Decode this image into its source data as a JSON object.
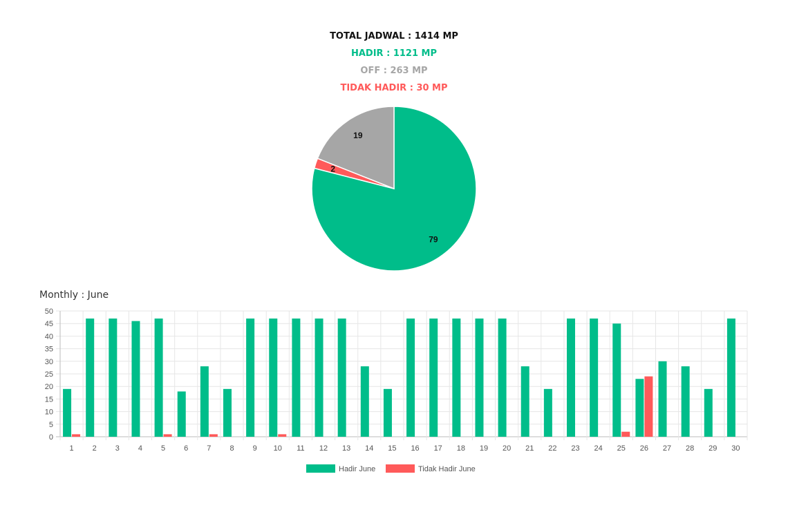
{
  "summary": {
    "total": "TOTAL JADWAL : 1414 MP",
    "hadir": "HADIR : 1121 MP",
    "off": "OFF : 263 MP",
    "tidak_hadir": "TIDAK HADIR : 30 MP"
  },
  "colors": {
    "hadir": "#00bd8a",
    "off": "#a6a6a6",
    "tidak_hadir": "#ff5a5a"
  },
  "monthly_title": "Monthly : June",
  "chart_data": [
    {
      "type": "pie",
      "slices": [
        {
          "key": "hadir",
          "value": 79,
          "label": "79",
          "color": "#00bd8a"
        },
        {
          "key": "tidak_hadir",
          "value": 2,
          "label": "2",
          "color": "#ff5a5a"
        },
        {
          "key": "off",
          "value": 19,
          "label": "19",
          "color": "#a6a6a6"
        }
      ]
    },
    {
      "type": "bar",
      "title": "Monthly : June",
      "categories": [
        "1",
        "2",
        "3",
        "4",
        "5",
        "6",
        "7",
        "8",
        "9",
        "10",
        "11",
        "12",
        "13",
        "14",
        "15",
        "16",
        "17",
        "18",
        "19",
        "20",
        "21",
        "22",
        "23",
        "24",
        "25",
        "26",
        "27",
        "28",
        "29",
        "30"
      ],
      "series": [
        {
          "name": "Hadir June",
          "color": "#00bd8a",
          "values": [
            19,
            47,
            47,
            46,
            47,
            18,
            28,
            19,
            47,
            47,
            47,
            47,
            47,
            28,
            19,
            47,
            47,
            47,
            47,
            47,
            28,
            19,
            47,
            47,
            45,
            23,
            30,
            28,
            19,
            47
          ]
        },
        {
          "name": "Tidak Hadir June",
          "color": "#ff5a5a",
          "values": [
            1,
            0,
            0,
            0,
            1,
            0,
            1,
            0,
            0,
            1,
            0,
            0,
            0,
            0,
            0,
            0,
            0,
            0,
            0,
            0,
            0,
            0,
            0,
            0,
            2,
            24,
            0,
            0,
            0,
            0
          ]
        }
      ],
      "yticks": [
        0,
        5,
        10,
        15,
        20,
        25,
        30,
        35,
        40,
        45,
        50
      ],
      "ylim": [
        0,
        50
      ],
      "grid": true,
      "legend": "bottom"
    }
  ]
}
